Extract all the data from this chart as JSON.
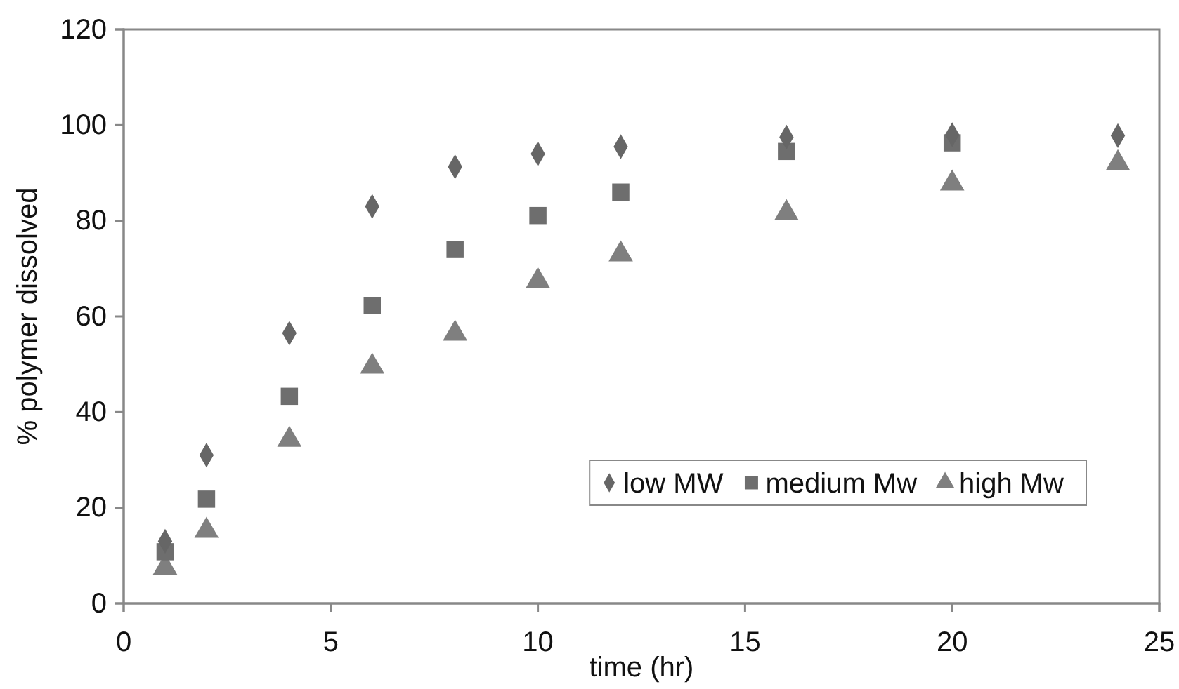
{
  "chart_data": {
    "type": "scatter",
    "xlabel": "time (hr)",
    "ylabel": "% polymer dissolved",
    "xlim": [
      0,
      25
    ],
    "xticks": [
      0,
      5,
      10,
      15,
      20,
      25
    ],
    "ylim": [
      0,
      120
    ],
    "yticks": [
      0,
      20,
      40,
      60,
      80,
      100,
      120
    ],
    "grid": false,
    "legend": "bottom right",
    "series": [
      {
        "name": "low MW",
        "color": "#666666",
        "marker": "diamond",
        "x": [
          1,
          2,
          4,
          6,
          8,
          10,
          12,
          16,
          20,
          24
        ],
        "values": [
          13,
          31,
          56.5,
          83,
          91.3,
          94,
          95.5,
          97.5,
          98,
          97.8
        ]
      },
      {
        "name": "medium Mw",
        "color": "#6e6e6e",
        "marker": "square",
        "x": [
          1,
          2,
          4,
          6,
          8,
          10,
          12,
          16,
          20
        ],
        "values": [
          10.8,
          21.8,
          43.3,
          62.3,
          74,
          81.1,
          86,
          94.5,
          96.3
        ]
      },
      {
        "name": "high Mw",
        "color": "#7f7f7f",
        "marker": "triangle",
        "x": [
          1,
          2,
          4,
          6,
          8,
          10,
          12,
          16,
          20,
          24
        ],
        "values": [
          7.5,
          15.2,
          34.2,
          49.5,
          56.4,
          67.4,
          73,
          81.6,
          87.8,
          92
        ]
      }
    ]
  }
}
